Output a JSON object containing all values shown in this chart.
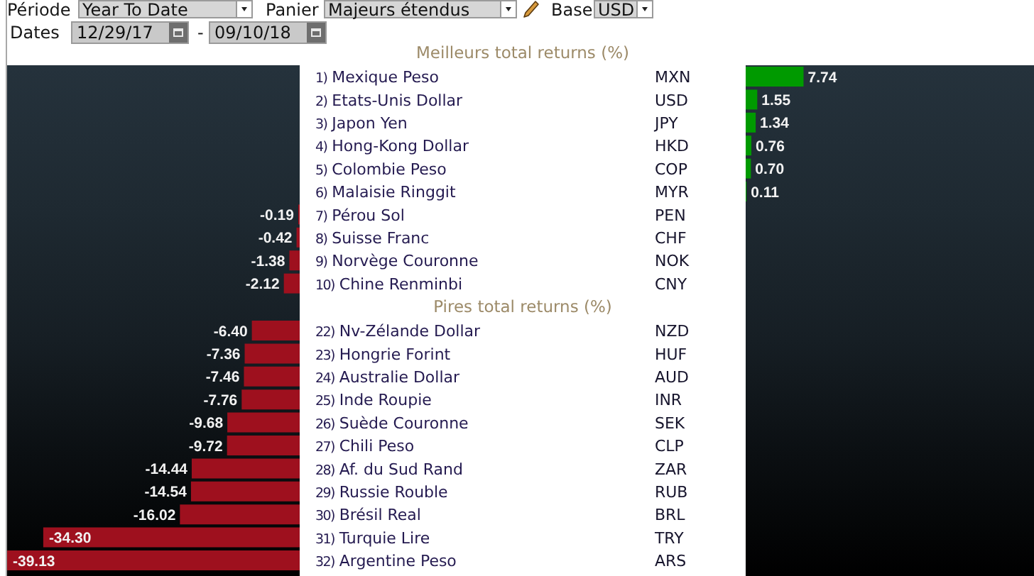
{
  "chart_data": [
    {
      "type": "bar",
      "orientation": "horizontal",
      "title": "Meilleurs total returns (%)",
      "categories": [
        "1) Mexique Peso",
        "2) Etats-Unis Dollar",
        "3) Japon Yen",
        "4) Hong-Kong Dollar",
        "5) Colombie Peso",
        "6) Malaisie Ringgit",
        "7) Pérou Sol",
        "8) Suisse Franc",
        "9) Norvège Couronne",
        "10) Chine Renminbi"
      ],
      "y2_categories": [
        "MXN",
        "USD",
        "JPY",
        "HKD",
        "COP",
        "MYR",
        "PEN",
        "CHF",
        "NOK",
        "CNY"
      ],
      "values": [
        null,
        null,
        null,
        null,
        null,
        null,
        -0.19,
        -0.42,
        -1.38,
        -2.12
      ],
      "value_labels": [
        null,
        null,
        null,
        null,
        null,
        null,
        "-0.19",
        "-0.42",
        "-1.38",
        "-2.12"
      ],
      "color": "#9e101e",
      "annotations": [
        "Période",
        "Year To Date",
        "Panier",
        "Majeurs étendus",
        "Base",
        "USD",
        "Dates",
        "12/29/17",
        "-",
        "09/10/18"
      ]
    },
    {
      "type": "bar",
      "orientation": "horizontal",
      "categories": [
        null,
        null,
        null,
        null,
        null,
        null,
        null,
        null,
        null,
        null
      ],
      "values": [
        7.74,
        1.55,
        1.34,
        0.76,
        0.7,
        0.11,
        null,
        null,
        null,
        null
      ],
      "value_labels": [
        "7.74",
        "1.55",
        "1.34",
        "0.76",
        "0.70",
        "0.11",
        null,
        null,
        null,
        null
      ],
      "color": "#009a00"
    },
    {
      "type": "bar",
      "orientation": "horizontal",
      "title": "Pires total returns (%)",
      "categories": [
        "22) Nv-Zélande Dollar",
        "23) Hongrie Forint",
        "24) Australie Dollar",
        "25) Inde Roupie",
        "26) Suède Couronne",
        "27) Chili Peso",
        "28) Af. du Sud Rand",
        "29) Russie Rouble",
        "30) Brésil Real",
        "31) Turquie Lire",
        "32) Argentine Peso"
      ],
      "y2_categories": [
        "NZD",
        "HUF",
        "AUD",
        "INR",
        "SEK",
        "CLP",
        "ZAR",
        "RUB",
        "BRL",
        "TRY",
        "ARS"
      ],
      "values": [
        -6.4,
        -7.36,
        -7.46,
        -7.76,
        -9.68,
        -9.72,
        -14.44,
        -14.54,
        -16.02,
        -34.3,
        -39.13
      ],
      "value_labels": [
        "-6.40",
        "-7.36",
        "-7.46",
        "-7.76",
        "-9.68",
        "-9.72",
        "-14.44",
        "-14.54",
        "-16.02",
        "-34.30",
        "-39.13"
      ],
      "color": "#9e101e"
    }
  ]
}
